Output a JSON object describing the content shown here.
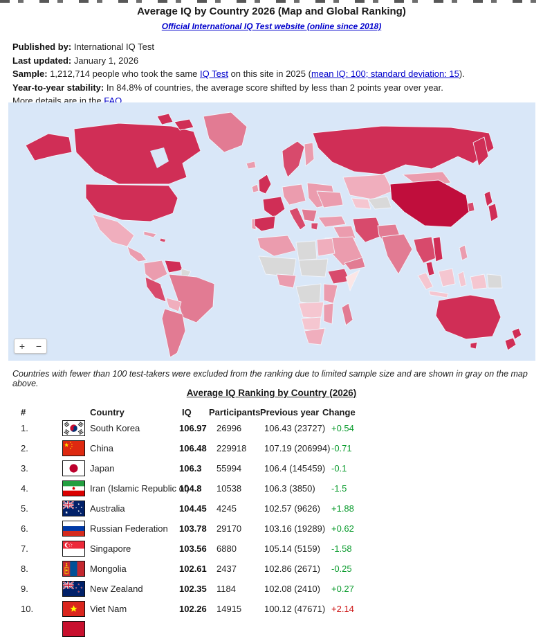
{
  "header": {
    "title": "Average IQ by Country 2026 (Map and Global Ranking)",
    "subtitle_link": "Official International IQ Test website (online since 2018)"
  },
  "meta": {
    "published_label": "Published by:",
    "published_value": " International IQ Test",
    "updated_label": "Last updated:",
    "updated_value": " January 1, 2026",
    "sample_label": "Sample:",
    "sample_t1": " 1,212,714 people who took the same ",
    "sample_link1": "IQ Test",
    "sample_t2": " on this site in 2025 (",
    "sample_link2": "mean IQ: 100; standard deviation: 15",
    "sample_t3": ").",
    "stability_label": "Year-to-year stability:",
    "stability_value": " In 84.8% of countries, the average score shifted by less than 2 points year over year.",
    "more_t1": "More details are in the ",
    "faq_link": "FAQ",
    "more_t2": "."
  },
  "map": {
    "zoom_in_label": "+",
    "zoom_out_label": "−",
    "note": "Countries with fewer than 100 test-takers were excluded from the ranking due to limited sample size and are shown in gray on the map above.",
    "palette": {
      "ocean": "#d9e7f8",
      "iq_highest": "#c00e3c",
      "iq_very_high": "#d02e56",
      "iq_high": "#d84a6c",
      "iq_mid_high": "#e27b93",
      "iq_mid": "#eb9cae",
      "iq_mid_low": "#f0aebd",
      "iq_low": "#f5c6d0",
      "iq_lowest": "#fbe6e6",
      "excluded_gray": "#d9d9d9",
      "border": "#f0f4fb"
    }
  },
  "ranking": {
    "title": "Average IQ Ranking by Country (2026)",
    "columns": {
      "rank": "#",
      "country": "Country",
      "iq": "IQ",
      "participants": "Participants",
      "previous": "Previous year",
      "change": "Change"
    },
    "change_colors": {
      "green": "#0a9b2d",
      "red": "#cc1111"
    },
    "rows": [
      {
        "rank": "1.",
        "flag": "kr",
        "country": "South Korea",
        "iq": "106.97",
        "participants": "26996",
        "previous": "106.43 (23727)",
        "change": "+0.54",
        "change_color": "green"
      },
      {
        "rank": "2.",
        "flag": "cn",
        "country": "China",
        "iq": "106.48",
        "participants": "229918",
        "previous": "107.19 (206994)",
        "change": "-0.71",
        "change_color": "green"
      },
      {
        "rank": "3.",
        "flag": "jp",
        "country": "Japan",
        "iq": "106.3",
        "participants": "55994",
        "previous": "106.4 (145459)",
        "change": "-0.1",
        "change_color": "green"
      },
      {
        "rank": "4.",
        "flag": "ir",
        "country": "Iran (Islamic Republic of)",
        "iq": "104.8",
        "participants": "10538",
        "previous": "106.3 (3850)",
        "change": "-1.5",
        "change_color": "green"
      },
      {
        "rank": "5.",
        "flag": "au",
        "country": "Australia",
        "iq": "104.45",
        "participants": "4245",
        "previous": "102.57 (9626)",
        "change": "+1.88",
        "change_color": "green"
      },
      {
        "rank": "6.",
        "flag": "ru",
        "country": "Russian Federation",
        "iq": "103.78",
        "participants": "29170",
        "previous": "103.16 (19289)",
        "change": "+0.62",
        "change_color": "green"
      },
      {
        "rank": "7.",
        "flag": "sg",
        "country": "Singapore",
        "iq": "103.56",
        "participants": "6880",
        "previous": "105.14 (5159)",
        "change": "-1.58",
        "change_color": "green"
      },
      {
        "rank": "8.",
        "flag": "mn",
        "country": "Mongolia",
        "iq": "102.61",
        "participants": "2437",
        "previous": "102.86 (2671)",
        "change": "-0.25",
        "change_color": "green"
      },
      {
        "rank": "9.",
        "flag": "nz",
        "country": "New Zealand",
        "iq": "102.35",
        "participants": "1184",
        "previous": "102.08 (2410)",
        "change": "+0.27",
        "change_color": "green"
      },
      {
        "rank": "10.",
        "flag": "vn",
        "country": "Viet Nam",
        "iq": "102.26",
        "participants": "14915",
        "previous": "100.12 (47671)",
        "change": "+2.14",
        "change_color": "red"
      }
    ],
    "partial_row": {
      "flag": "red"
    }
  }
}
